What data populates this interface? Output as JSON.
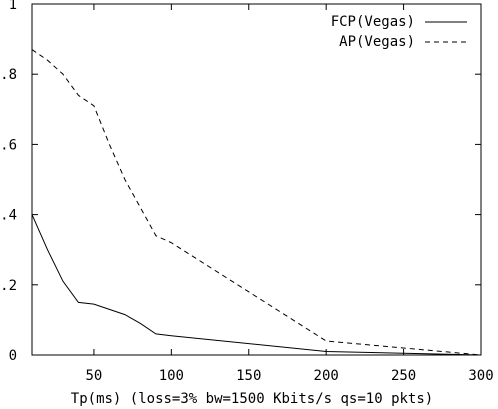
{
  "chart_data": {
    "type": "line",
    "xlabel": "Tp(ms) (loss=3%  bw=1500 Kbits/s qs=10 pkts)",
    "ylabel": "",
    "xlim": [
      10,
      300
    ],
    "ylim": [
      0,
      1
    ],
    "x_ticks": [
      50,
      100,
      150,
      200,
      250,
      300
    ],
    "x_tick_labels": [
      "50",
      "100",
      "150",
      "200",
      "250",
      "300"
    ],
    "y_ticks": [
      0,
      0.2,
      0.4,
      0.6,
      0.8,
      1
    ],
    "y_tick_labels": [
      "0",
      ".2",
      ".4",
      ".6",
      ".8",
      "1"
    ],
    "grid": false,
    "legend_position": "top-right",
    "series": [
      {
        "name": "FCP(Vegas)",
        "style": "solid",
        "color": "#000000",
        "x": [
          10,
          20,
          30,
          40,
          50,
          60,
          70,
          80,
          90,
          100,
          200,
          300
        ],
        "y": [
          0.4,
          0.3,
          0.21,
          0.15,
          0.145,
          0.13,
          0.115,
          0.09,
          0.06,
          0.055,
          0.01,
          0.0
        ]
      },
      {
        "name": "AP(Vegas)",
        "style": "dashed",
        "color": "#000000",
        "x": [
          10,
          20,
          30,
          40,
          50,
          60,
          70,
          80,
          90,
          100,
          200,
          300
        ],
        "y": [
          0.87,
          0.84,
          0.8,
          0.74,
          0.71,
          0.6,
          0.5,
          0.42,
          0.34,
          0.32,
          0.04,
          0.0
        ]
      },
      {
        "name": "",
        "style": "dotted",
        "color": "#000000",
        "x": [
          10,
          300
        ],
        "y": [
          0.0,
          0.0
        ]
      }
    ]
  }
}
